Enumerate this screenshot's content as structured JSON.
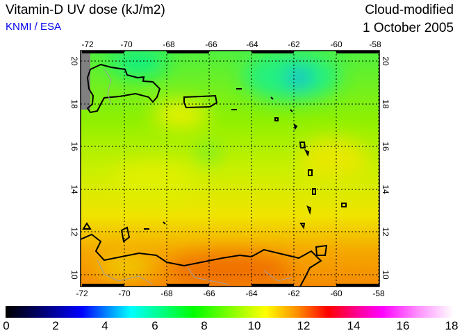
{
  "header": {
    "title": "Vitamin-D UV dose (kJ/m2)",
    "credit": "KNMI / ESA",
    "product": "Cloud-modified",
    "date": "1 October 2005"
  },
  "map": {
    "lon_ticks": [
      "-72",
      "-70",
      "-68",
      "-66",
      "-64",
      "-62",
      "-60",
      "-58"
    ],
    "lat_ticks": [
      "20",
      "18",
      "16",
      "14",
      "12",
      "10"
    ],
    "region": "Caribbean Sea / Hispaniola / Lesser Antilles / Venezuela"
  },
  "colorbar": {
    "ticks": [
      "0",
      "2",
      "4",
      "6",
      "8",
      "10",
      "12",
      "14",
      "16",
      "18"
    ],
    "min": 0,
    "max": 18,
    "units": "kJ/m2"
  },
  "colors": {
    "low": "#000000",
    "mid": "#00ff00",
    "high": "#ffffff"
  }
}
